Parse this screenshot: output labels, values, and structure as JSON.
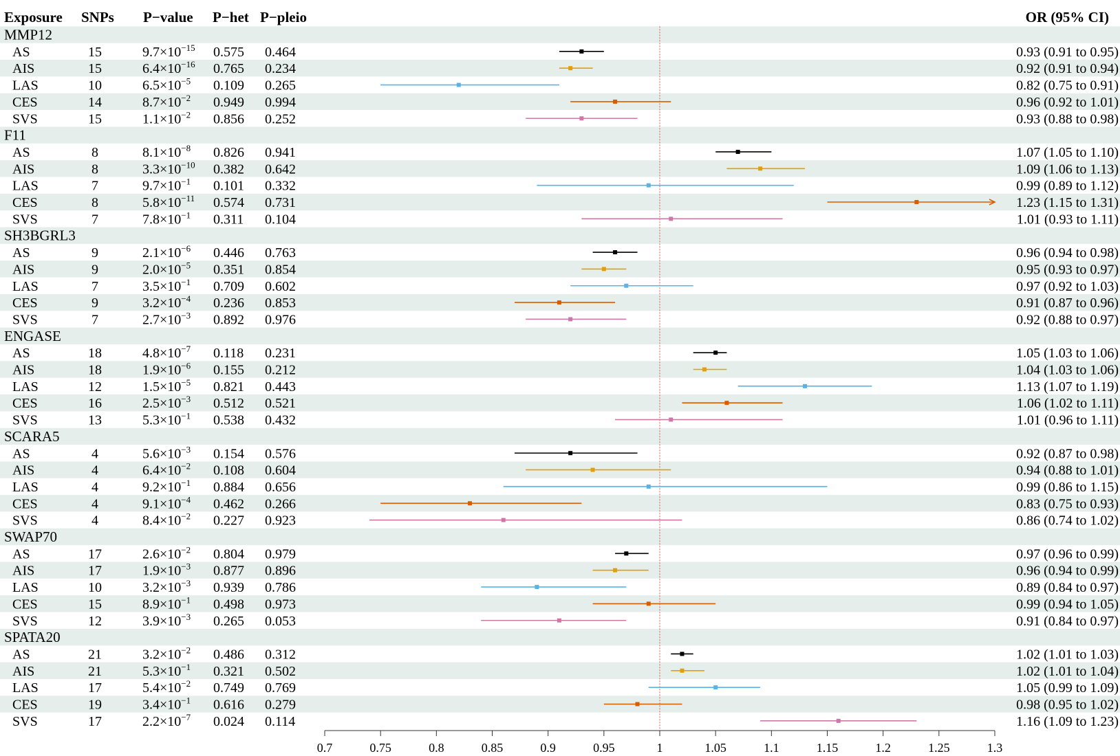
{
  "header": {
    "exposure": "Exposure",
    "snps": "SNPs",
    "pvalue": "P−value",
    "phet": "P−het",
    "ppleio": "P−pleio",
    "or": "OR (95% CI)"
  },
  "colors": {
    "AS": "#000000",
    "AIS": "#E69F00",
    "LAS": "#56B4E9",
    "CES": "#D55E00",
    "SVS": "#CC79A7",
    "band": "#E6EEEB",
    "refline": "#E05050",
    "axis": "#333333"
  },
  "chart_data": {
    "type": "forest",
    "xlabel": "",
    "xlim": [
      0.7,
      1.3
    ],
    "xticks": [
      "0.7",
      "0.75",
      "0.8",
      "0.85",
      "0.9",
      "0.95",
      "1",
      "1.05",
      "1.1",
      "1.15",
      "1.2",
      "1.25",
      "1.3"
    ],
    "reference_line": 1,
    "groups": [
      {
        "name": "MMP12",
        "rows": [
          {
            "label": "AS",
            "snps": "15",
            "p_base": "9.7",
            "p_exp": "−15",
            "phet": "0.575",
            "ppleio": "0.464",
            "or": 0.93,
            "lo": 0.91,
            "hi": 0.95,
            "ci": "0.93 (0.91 to 0.95)"
          },
          {
            "label": "AIS",
            "snps": "15",
            "p_base": "6.4",
            "p_exp": "−16",
            "phet": "0.765",
            "ppleio": "0.234",
            "or": 0.92,
            "lo": 0.91,
            "hi": 0.94,
            "ci": "0.92 (0.91 to 0.94)"
          },
          {
            "label": "LAS",
            "snps": "10",
            "p_base": "6.5",
            "p_exp": "−5",
            "phet": "0.109",
            "ppleio": "0.265",
            "or": 0.82,
            "lo": 0.75,
            "hi": 0.91,
            "ci": "0.82 (0.75 to 0.91)"
          },
          {
            "label": "CES",
            "snps": "14",
            "p_base": "8.7",
            "p_exp": "−2",
            "phet": "0.949",
            "ppleio": "0.994",
            "or": 0.96,
            "lo": 0.92,
            "hi": 1.01,
            "ci": "0.96 (0.92 to 1.01)"
          },
          {
            "label": "SVS",
            "snps": "15",
            "p_base": "1.1",
            "p_exp": "−2",
            "phet": "0.856",
            "ppleio": "0.252",
            "or": 0.93,
            "lo": 0.88,
            "hi": 0.98,
            "ci": "0.93 (0.88 to 0.98)"
          }
        ]
      },
      {
        "name": "F11",
        "rows": [
          {
            "label": "AS",
            "snps": "8",
            "p_base": "8.1",
            "p_exp": "−8",
            "phet": "0.826",
            "ppleio": "0.941",
            "or": 1.07,
            "lo": 1.05,
            "hi": 1.1,
            "ci": "1.07 (1.05 to 1.10)"
          },
          {
            "label": "AIS",
            "snps": "8",
            "p_base": "3.3",
            "p_exp": "−10",
            "phet": "0.382",
            "ppleio": "0.642",
            "or": 1.09,
            "lo": 1.06,
            "hi": 1.13,
            "ci": "1.09 (1.06 to 1.13)"
          },
          {
            "label": "LAS",
            "snps": "7",
            "p_base": "9.7",
            "p_exp": "−1",
            "phet": "0.101",
            "ppleio": "0.332",
            "or": 0.99,
            "lo": 0.89,
            "hi": 1.12,
            "ci": "0.99 (0.89 to 1.12)"
          },
          {
            "label": "CES",
            "snps": "8",
            "p_base": "5.8",
            "p_exp": "−11",
            "phet": "0.574",
            "ppleio": "0.731",
            "or": 1.23,
            "lo": 1.15,
            "hi": 1.31,
            "ci": "1.23 (1.15 to 1.31)"
          },
          {
            "label": "SVS",
            "snps": "7",
            "p_base": "7.8",
            "p_exp": "−1",
            "phet": "0.311",
            "ppleio": "0.104",
            "or": 1.01,
            "lo": 0.93,
            "hi": 1.11,
            "ci": "1.01 (0.93 to 1.11)"
          }
        ]
      },
      {
        "name": "SH3BGRL3",
        "rows": [
          {
            "label": "AS",
            "snps": "9",
            "p_base": "2.1",
            "p_exp": "−6",
            "phet": "0.446",
            "ppleio": "0.763",
            "or": 0.96,
            "lo": 0.94,
            "hi": 0.98,
            "ci": "0.96 (0.94 to 0.98)"
          },
          {
            "label": "AIS",
            "snps": "9",
            "p_base": "2.0",
            "p_exp": "−5",
            "phet": "0.351",
            "ppleio": "0.854",
            "or": 0.95,
            "lo": 0.93,
            "hi": 0.97,
            "ci": "0.95 (0.93 to 0.97)"
          },
          {
            "label": "LAS",
            "snps": "7",
            "p_base": "3.5",
            "p_exp": "−1",
            "phet": "0.709",
            "ppleio": "0.602",
            "or": 0.97,
            "lo": 0.92,
            "hi": 1.03,
            "ci": "0.97 (0.92 to 1.03)"
          },
          {
            "label": "CES",
            "snps": "9",
            "p_base": "3.2",
            "p_exp": "−4",
            "phet": "0.236",
            "ppleio": "0.853",
            "or": 0.91,
            "lo": 0.87,
            "hi": 0.96,
            "ci": "0.91 (0.87 to 0.96)"
          },
          {
            "label": "SVS",
            "snps": "7",
            "p_base": "2.7",
            "p_exp": "−3",
            "phet": "0.892",
            "ppleio": "0.976",
            "or": 0.92,
            "lo": 0.88,
            "hi": 0.97,
            "ci": "0.92 (0.88 to 0.97)"
          }
        ]
      },
      {
        "name": "ENGASE",
        "rows": [
          {
            "label": "AS",
            "snps": "18",
            "p_base": "4.8",
            "p_exp": "−7",
            "phet": "0.118",
            "ppleio": "0.231",
            "or": 1.05,
            "lo": 1.03,
            "hi": 1.06,
            "ci": "1.05 (1.03 to 1.06)"
          },
          {
            "label": "AIS",
            "snps": "18",
            "p_base": "1.9",
            "p_exp": "−6",
            "phet": "0.155",
            "ppleio": "0.212",
            "or": 1.04,
            "lo": 1.03,
            "hi": 1.06,
            "ci": "1.04 (1.03 to 1.06)"
          },
          {
            "label": "LAS",
            "snps": "12",
            "p_base": "1.5",
            "p_exp": "−5",
            "phet": "0.821",
            "ppleio": "0.443",
            "or": 1.13,
            "lo": 1.07,
            "hi": 1.19,
            "ci": "1.13 (1.07 to 1.19)"
          },
          {
            "label": "CES",
            "snps": "16",
            "p_base": "2.5",
            "p_exp": "−3",
            "phet": "0.512",
            "ppleio": "0.521",
            "or": 1.06,
            "lo": 1.02,
            "hi": 1.11,
            "ci": "1.06 (1.02 to 1.11)"
          },
          {
            "label": "SVS",
            "snps": "13",
            "p_base": "5.3",
            "p_exp": "−1",
            "phet": "0.538",
            "ppleio": "0.432",
            "or": 1.01,
            "lo": 0.96,
            "hi": 1.11,
            "ci": "1.01 (0.96 to 1.11)"
          }
        ]
      },
      {
        "name": "SCARA5",
        "rows": [
          {
            "label": "AS",
            "snps": "4",
            "p_base": "5.6",
            "p_exp": "−3",
            "phet": "0.154",
            "ppleio": "0.576",
            "or": 0.92,
            "lo": 0.87,
            "hi": 0.98,
            "ci": "0.92 (0.87 to 0.98)"
          },
          {
            "label": "AIS",
            "snps": "4",
            "p_base": "6.4",
            "p_exp": "−2",
            "phet": "0.108",
            "ppleio": "0.604",
            "or": 0.94,
            "lo": 0.88,
            "hi": 1.01,
            "ci": "0.94 (0.88 to 1.01)"
          },
          {
            "label": "LAS",
            "snps": "4",
            "p_base": "9.2",
            "p_exp": "−1",
            "phet": "0.884",
            "ppleio": "0.656",
            "or": 0.99,
            "lo": 0.86,
            "hi": 1.15,
            "ci": "0.99 (0.86 to 1.15)"
          },
          {
            "label": "CES",
            "snps": "4",
            "p_base": "9.1",
            "p_exp": "−4",
            "phet": "0.462",
            "ppleio": "0.266",
            "or": 0.83,
            "lo": 0.75,
            "hi": 0.93,
            "ci": "0.83 (0.75 to 0.93)"
          },
          {
            "label": "SVS",
            "snps": "4",
            "p_base": "8.4",
            "p_exp": "−2",
            "phet": "0.227",
            "ppleio": "0.923",
            "or": 0.86,
            "lo": 0.74,
            "hi": 1.02,
            "ci": "0.86 (0.74 to 1.02)"
          }
        ]
      },
      {
        "name": "SWAP70",
        "rows": [
          {
            "label": "AS",
            "snps": "17",
            "p_base": "2.6",
            "p_exp": "−2",
            "phet": "0.804",
            "ppleio": "0.979",
            "or": 0.97,
            "lo": 0.96,
            "hi": 0.99,
            "ci": "0.97 (0.96 to 0.99)"
          },
          {
            "label": "AIS",
            "snps": "17",
            "p_base": "1.9",
            "p_exp": "−3",
            "phet": "0.877",
            "ppleio": "0.896",
            "or": 0.96,
            "lo": 0.94,
            "hi": 0.99,
            "ci": "0.96 (0.94 to 0.99)"
          },
          {
            "label": "LAS",
            "snps": "10",
            "p_base": "3.2",
            "p_exp": "−3",
            "phet": "0.939",
            "ppleio": "0.786",
            "or": 0.89,
            "lo": 0.84,
            "hi": 0.97,
            "ci": "0.89 (0.84 to 0.97)"
          },
          {
            "label": "CES",
            "snps": "15",
            "p_base": "8.9",
            "p_exp": "−1",
            "phet": "0.498",
            "ppleio": "0.973",
            "or": 0.99,
            "lo": 0.94,
            "hi": 1.05,
            "ci": "0.99 (0.94 to 1.05)"
          },
          {
            "label": "SVS",
            "snps": "12",
            "p_base": "3.9",
            "p_exp": "−3",
            "phet": "0.265",
            "ppleio": "0.053",
            "or": 0.91,
            "lo": 0.84,
            "hi": 0.97,
            "ci": "0.91 (0.84 to 0.97)"
          }
        ]
      },
      {
        "name": "SPATA20",
        "rows": [
          {
            "label": "AS",
            "snps": "21",
            "p_base": "3.2",
            "p_exp": "−2",
            "phet": "0.486",
            "ppleio": "0.312",
            "or": 1.02,
            "lo": 1.01,
            "hi": 1.03,
            "ci": "1.02 (1.01 to 1.03)"
          },
          {
            "label": "AIS",
            "snps": "21",
            "p_base": "5.3",
            "p_exp": "−1",
            "phet": "0.321",
            "ppleio": "0.502",
            "or": 1.02,
            "lo": 1.01,
            "hi": 1.04,
            "ci": "1.02 (1.01 to 1.04)"
          },
          {
            "label": "LAS",
            "snps": "17",
            "p_base": "5.4",
            "p_exp": "−2",
            "phet": "0.749",
            "ppleio": "0.769",
            "or": 1.05,
            "lo": 0.99,
            "hi": 1.09,
            "ci": "1.05 (0.99 to 1.09)"
          },
          {
            "label": "CES",
            "snps": "19",
            "p_base": "3.4",
            "p_exp": "−1",
            "phet": "0.616",
            "ppleio": "0.279",
            "or": 0.98,
            "lo": 0.95,
            "hi": 1.02,
            "ci": "0.98 (0.95 to 1.02)"
          },
          {
            "label": "SVS",
            "snps": "17",
            "p_base": "2.2",
            "p_exp": "−7",
            "phet": "0.024",
            "ppleio": "0.114",
            "or": 1.16,
            "lo": 1.09,
            "hi": 1.23,
            "ci": "1.16 (1.09 to 1.23)"
          }
        ]
      }
    ]
  }
}
